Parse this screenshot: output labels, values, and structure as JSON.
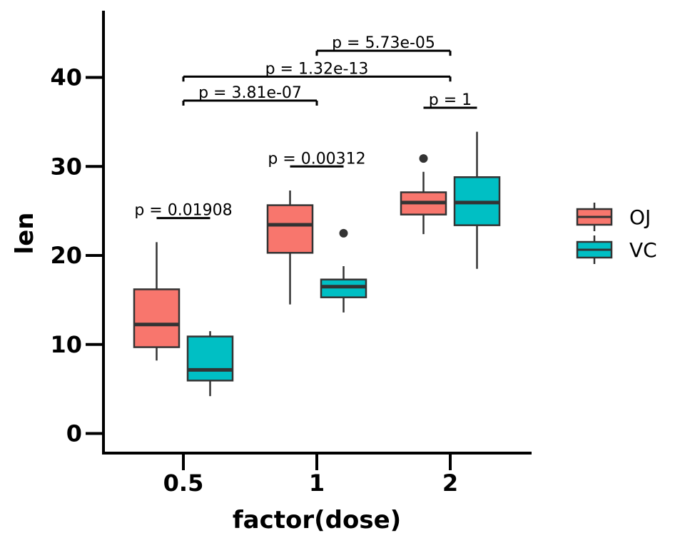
{
  "chart_data": {
    "type": "boxplot",
    "xlabel": "factor(dose)",
    "ylabel": "len",
    "categories": [
      "0.5",
      "1",
      "2"
    ],
    "ylim": [
      -2.2,
      47.5
    ],
    "yticks": [
      0,
      10,
      20,
      30,
      40
    ],
    "grid": false,
    "legend_position": "right",
    "series": [
      {
        "name": "OJ",
        "color": "#F8766D",
        "boxes": [
          {
            "category": "0.5",
            "whisker_low": 8.2,
            "q1": 9.7,
            "median": 12.25,
            "q3": 16.2,
            "whisker_high": 21.5,
            "outliers": []
          },
          {
            "category": "1",
            "whisker_low": 14.5,
            "q1": 20.3,
            "median": 23.45,
            "q3": 25.65,
            "whisker_high": 27.3,
            "outliers": []
          },
          {
            "category": "2",
            "whisker_low": 22.4,
            "q1": 24.6,
            "median": 25.95,
            "q3": 27.1,
            "whisker_high": 29.4,
            "outliers": [
              30.9
            ]
          }
        ]
      },
      {
        "name": "VC",
        "color": "#00BFC4",
        "boxes": [
          {
            "category": "0.5",
            "whisker_low": 4.2,
            "q1": 5.95,
            "median": 7.15,
            "q3": 10.9,
            "whisker_high": 11.5,
            "outliers": []
          },
          {
            "category": "1",
            "whisker_low": 13.6,
            "q1": 15.3,
            "median": 16.5,
            "q3": 17.3,
            "whisker_high": 18.8,
            "outliers": [
              22.5
            ]
          },
          {
            "category": "2",
            "whisker_low": 18.5,
            "q1": 23.4,
            "median": 25.95,
            "q3": 28.8,
            "whisker_high": 33.9,
            "outliers": []
          }
        ]
      }
    ],
    "annotations": [
      {
        "label": "p = 0.01908",
        "type": "within",
        "center": "0.5",
        "y": 24.2
      },
      {
        "label": "p = 0.00312",
        "type": "within",
        "center": "1",
        "y": 30.0
      },
      {
        "label": "p = 1",
        "type": "within",
        "center": "2",
        "y": 36.6
      },
      {
        "label": "p = 3.81e-07",
        "type": "between",
        "from": "0.5",
        "to": "1",
        "y": 37.4
      },
      {
        "label": "p = 1.32e-13",
        "type": "between",
        "from": "0.5",
        "to": "2",
        "y": 40.1
      },
      {
        "label": "p = 5.73e-05",
        "type": "between",
        "from": "1",
        "to": "2",
        "y": 43.0
      }
    ]
  }
}
